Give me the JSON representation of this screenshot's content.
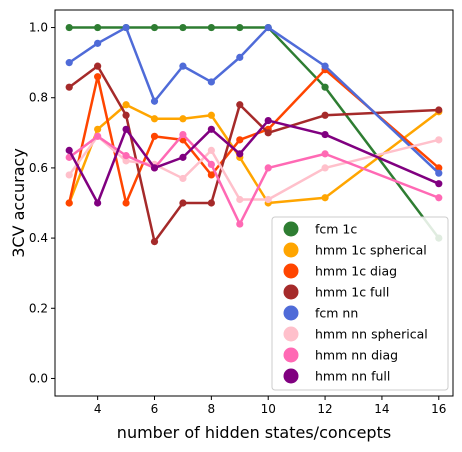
{
  "chart_data": {
    "type": "line",
    "xlabel": "number of hidden states/concepts",
    "ylabel": "3CV accuracy",
    "xlim": [
      2.5,
      16.5
    ],
    "ylim": [
      -0.05,
      1.05
    ],
    "xticks": [
      4,
      6,
      8,
      10,
      12,
      14,
      16
    ],
    "yticks": [
      0.0,
      0.2,
      0.4,
      0.6,
      0.8,
      1.0
    ],
    "xtick_labels": [
      "4",
      "6",
      "8",
      "10",
      "12",
      "14",
      "16"
    ],
    "ytick_labels": [
      "0.0",
      "0.2",
      "0.4",
      "0.6",
      "0.8",
      "1.0"
    ],
    "grid": false,
    "legend_position": "lower-right",
    "x": [
      3,
      4,
      5,
      6,
      7,
      8,
      9,
      10,
      12,
      16
    ],
    "series": [
      {
        "name": "fcm 1c",
        "color": "#2e7d32",
        "values": [
          1.0,
          1.0,
          1.0,
          1.0,
          1.0,
          1.0,
          1.0,
          1.0,
          0.83,
          0.4
        ]
      },
      {
        "name": "hmm 1c spherical",
        "color": "#ffa500",
        "values": [
          0.5,
          0.71,
          0.78,
          0.74,
          0.74,
          0.75,
          0.63,
          0.5,
          0.515,
          0.76
        ]
      },
      {
        "name": "hmm 1c diag",
        "color": "#ff4500",
        "values": [
          0.5,
          0.86,
          0.5,
          0.69,
          0.68,
          0.58,
          0.68,
          0.71,
          0.88,
          0.6
        ]
      },
      {
        "name": "hmm 1c full",
        "color": "#a52a2a",
        "values": [
          0.83,
          0.89,
          0.75,
          0.39,
          0.5,
          0.5,
          0.78,
          0.7,
          0.75,
          0.765
        ]
      },
      {
        "name": "fcm nn",
        "color": "#4f6bd8",
        "values": [
          0.9,
          0.955,
          1.0,
          0.79,
          0.89,
          0.845,
          0.915,
          1.0,
          0.89,
          0.585
        ]
      },
      {
        "name": "hmm nn spherical",
        "color": "#ffc0cb",
        "values": [
          0.58,
          0.69,
          0.62,
          0.61,
          0.57,
          0.65,
          0.51,
          0.51,
          0.6,
          0.68
        ]
      },
      {
        "name": "hmm nn diag",
        "color": "#ff69b4",
        "values": [
          0.63,
          0.69,
          0.635,
          0.6,
          0.695,
          0.61,
          0.44,
          0.6,
          0.64,
          0.515
        ]
      },
      {
        "name": "hmm nn full",
        "color": "#800080",
        "values": [
          0.65,
          0.5,
          0.71,
          0.6,
          0.63,
          0.71,
          0.64,
          0.735,
          0.695,
          0.555
        ]
      }
    ]
  }
}
